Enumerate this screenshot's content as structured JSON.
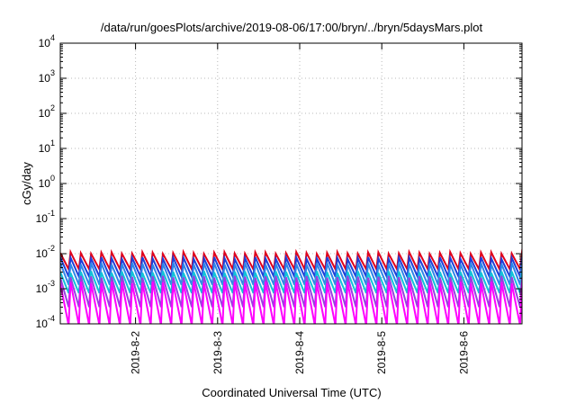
{
  "chart_data": {
    "type": "line",
    "title": "/data/run/goesPlots/archive/2019-08-06/17:00/bryn/../bryn/5daysMars.plot",
    "xlabel": "Coordinated Universal Time (UTC)",
    "ylabel": "cGy/day",
    "yscale": "log",
    "ylim": [
      0.0001,
      10000
    ],
    "y_ticks": [
      {
        "base": "10",
        "exp": "4",
        "value": 10000
      },
      {
        "base": "10",
        "exp": "3",
        "value": 1000
      },
      {
        "base": "10",
        "exp": "2",
        "value": 100
      },
      {
        "base": "10",
        "exp": "1",
        "value": 10
      },
      {
        "base": "10",
        "exp": "0",
        "value": 1
      },
      {
        "base": "10",
        "exp": "-1",
        "value": 0.1
      },
      {
        "base": "10",
        "exp": "-2",
        "value": 0.01
      },
      {
        "base": "10",
        "exp": "-3",
        "value": 0.001
      },
      {
        "base": "10",
        "exp": "-4",
        "value": 0.0001
      }
    ],
    "xlim": [
      "2019-08-01 02:00",
      "2019-08-06 17:00"
    ],
    "x_ticks": [
      "2019-8-2",
      "2019-8-3",
      "2019-8-4",
      "2019-8-5",
      "2019-8-6"
    ],
    "grid": true,
    "sawtooth": {
      "start": "2019-08-01 02:00",
      "period_hours": 3,
      "cycles": 45
    },
    "series": [
      {
        "color": "#e0001b",
        "peak": 0.0105,
        "trough": 0.0036
      },
      {
        "color": "#1e3fd8",
        "peak": 0.0075,
        "trough": 0.0022
      },
      {
        "color": "#2f86e8",
        "peak": 0.0052,
        "trough": 0.0013
      },
      {
        "color": "#12c3d8",
        "peak": 0.003,
        "trough": 0.00075
      },
      {
        "color": "#9a3fe0",
        "peak": 0.0022,
        "trough": 0.0003
      },
      {
        "color": "#ff00ff",
        "peak": 0.0015,
        "trough": 9e-05
      }
    ]
  }
}
